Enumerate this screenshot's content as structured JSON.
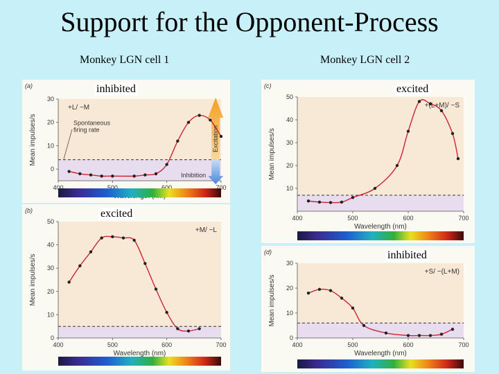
{
  "slide": {
    "title": "Support for the Opponent-Process",
    "cell1_label": "Monkey LGN cell 1",
    "cell2_label": "Monkey LGN cell 2"
  },
  "overlays": {
    "a": "inhibited",
    "b": "excited",
    "c": "excited",
    "d": "inhibited"
  },
  "colors": {
    "curve": "#cc2233",
    "plot_bg": "#f7e9d6",
    "band": "#e8dcef",
    "excitation_arrow": "#f0a030",
    "inhibition_arrow": "#6aa0e0"
  },
  "chart_data": [
    {
      "id": "a",
      "type": "line",
      "panel_label": "(a)",
      "series_label": "+L/ −M",
      "xlabel": "Wavelength (nm)",
      "ylabel": "Mean impulses/s",
      "xlim": [
        400,
        700
      ],
      "ylim": [
        -5,
        30
      ],
      "xticks": [
        400,
        500,
        600,
        700
      ],
      "yticks": [
        0,
        10,
        20,
        30
      ],
      "spontaneous_rate": 4,
      "annotations": [
        "Spontaneous",
        "firing rate"
      ],
      "excitation_label": "Excitation",
      "inhibition_label": "Inhibition",
      "x": [
        420,
        440,
        460,
        480,
        500,
        540,
        560,
        580,
        600,
        620,
        640,
        660,
        680,
        700
      ],
      "y": [
        -1,
        -2,
        -2.5,
        -3,
        -3,
        -3,
        -2.5,
        -2,
        2,
        12,
        20,
        23,
        21,
        14
      ]
    },
    {
      "id": "b",
      "type": "line",
      "panel_label": "(b)",
      "series_label": "+M/ −L",
      "xlabel": "Wavelength (nm)",
      "ylabel": "Mean impulses/s",
      "xlim": [
        400,
        700
      ],
      "ylim": [
        0,
        50
      ],
      "xticks": [
        400,
        500,
        600,
        700
      ],
      "yticks": [
        0,
        10,
        20,
        30,
        40,
        50
      ],
      "spontaneous_rate": 5,
      "x": [
        420,
        440,
        460,
        480,
        500,
        520,
        540,
        560,
        580,
        600,
        620,
        640,
        660
      ],
      "y": [
        24,
        31,
        37,
        43,
        43.5,
        43,
        42,
        32,
        21,
        11,
        4,
        3,
        4
      ]
    },
    {
      "id": "c",
      "type": "line",
      "panel_label": "(c)",
      "series_label": "+(L+M)/ −S",
      "xlabel": "Wavelength (nm)",
      "ylabel": "Mean impulses/s",
      "xlim": [
        400,
        700
      ],
      "ylim": [
        0,
        50
      ],
      "xticks": [
        400,
        500,
        600,
        700
      ],
      "yticks": [
        10,
        20,
        30,
        40,
        50
      ],
      "spontaneous_rate": 7,
      "x": [
        420,
        440,
        460,
        480,
        500,
        540,
        580,
        600,
        620,
        640,
        660,
        680,
        690
      ],
      "y": [
        4.5,
        4,
        3.8,
        4,
        6,
        10,
        20,
        35,
        48,
        47,
        44,
        34,
        23
      ]
    },
    {
      "id": "d",
      "type": "line",
      "panel_label": "(d)",
      "series_label": "+S/ −(L+M)",
      "xlabel": "Wavelength (nm)",
      "ylabel": "Mean impulses/s",
      "xlim": [
        400,
        700
      ],
      "ylim": [
        0,
        30
      ],
      "xticks": [
        400,
        500,
        600,
        700
      ],
      "yticks": [
        0,
        10,
        20,
        30
      ],
      "spontaneous_rate": 6,
      "x": [
        420,
        440,
        460,
        480,
        500,
        520,
        560,
        600,
        620,
        640,
        660,
        680
      ],
      "y": [
        18,
        19.5,
        19,
        16,
        12,
        5,
        2,
        1,
        1,
        1,
        1.5,
        3.5
      ]
    }
  ]
}
